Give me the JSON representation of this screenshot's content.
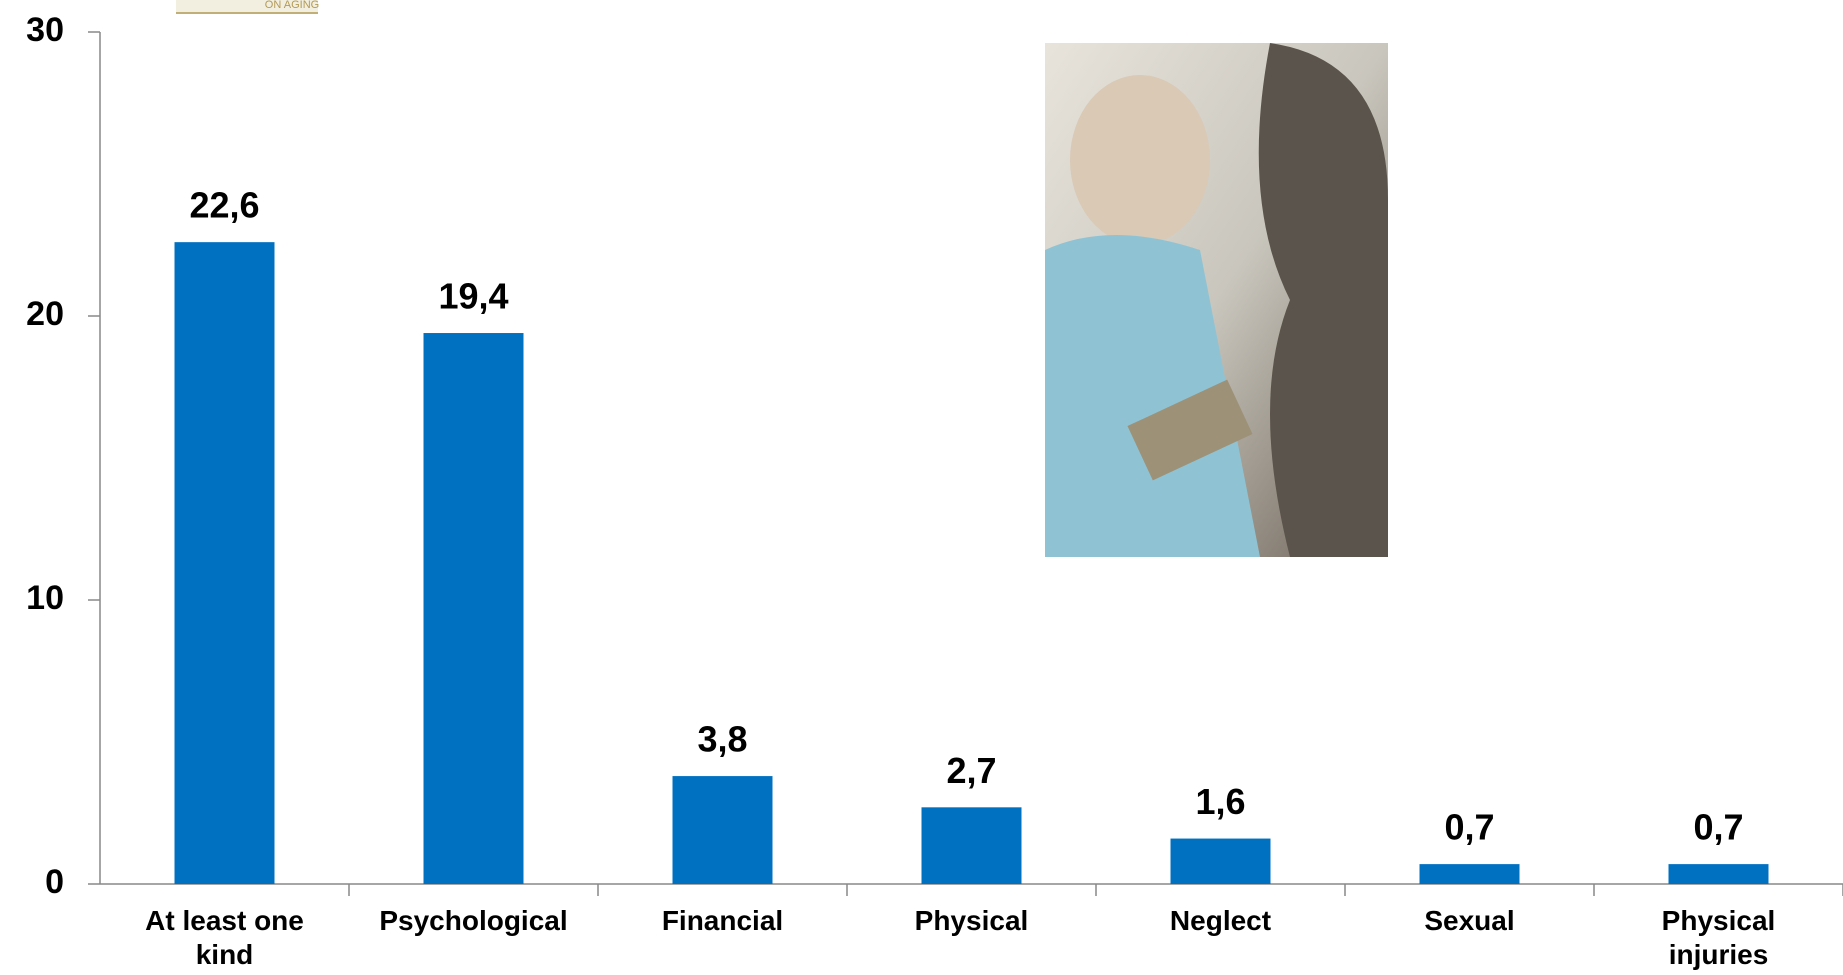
{
  "logo_text": "ON AGING",
  "chart_data": {
    "type": "bar",
    "categories": [
      "At least one kind",
      "Psychological",
      "Financial",
      "Physical",
      "Neglect",
      "Sexual",
      "Physical injuries"
    ],
    "values": [
      22.6,
      19.4,
      3.8,
      2.7,
      1.6,
      0.7,
      0.7
    ],
    "value_labels": [
      "22,6",
      "19,4",
      "3,8",
      "2,7",
      "1,6",
      "0,7",
      "0,7"
    ],
    "color": "#0070c0",
    "ylim": [
      0,
      30
    ],
    "yticks": [
      0,
      10,
      20,
      30
    ],
    "grid": false
  }
}
